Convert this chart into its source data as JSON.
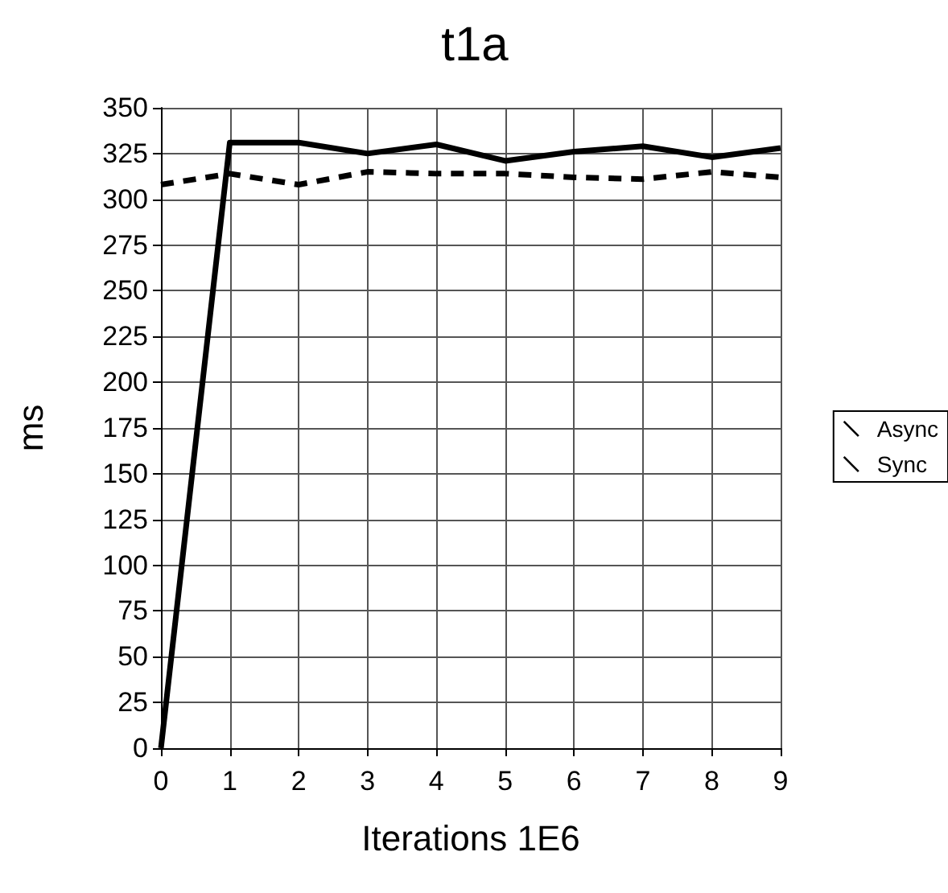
{
  "chart_data": {
    "type": "line",
    "title": "t1a",
    "xlabel": "Iterations 1E6",
    "ylabel": "ms",
    "x": [
      0,
      1,
      2,
      3,
      4,
      5,
      6,
      7,
      8,
      9
    ],
    "series": [
      {
        "name": "Async",
        "color": "#000000",
        "line_style": "solid",
        "values": [
          0,
          331,
          331,
          325,
          330,
          321,
          326,
          329,
          323,
          328
        ]
      },
      {
        "name": "Sync",
        "color": "#000000",
        "line_style": "dashed",
        "values": [
          308,
          314,
          308,
          315,
          314,
          314,
          312,
          311,
          315,
          312
        ]
      }
    ],
    "xlim": [
      0,
      9
    ],
    "xticks": [
      0,
      1,
      2,
      3,
      4,
      5,
      6,
      7,
      8,
      9
    ],
    "ylim": [
      0,
      350
    ],
    "yticks": [
      0,
      25,
      50,
      75,
      100,
      125,
      150,
      175,
      200,
      225,
      250,
      275,
      300,
      325,
      350
    ],
    "grid": true,
    "legend": "right",
    "marker": "none"
  }
}
